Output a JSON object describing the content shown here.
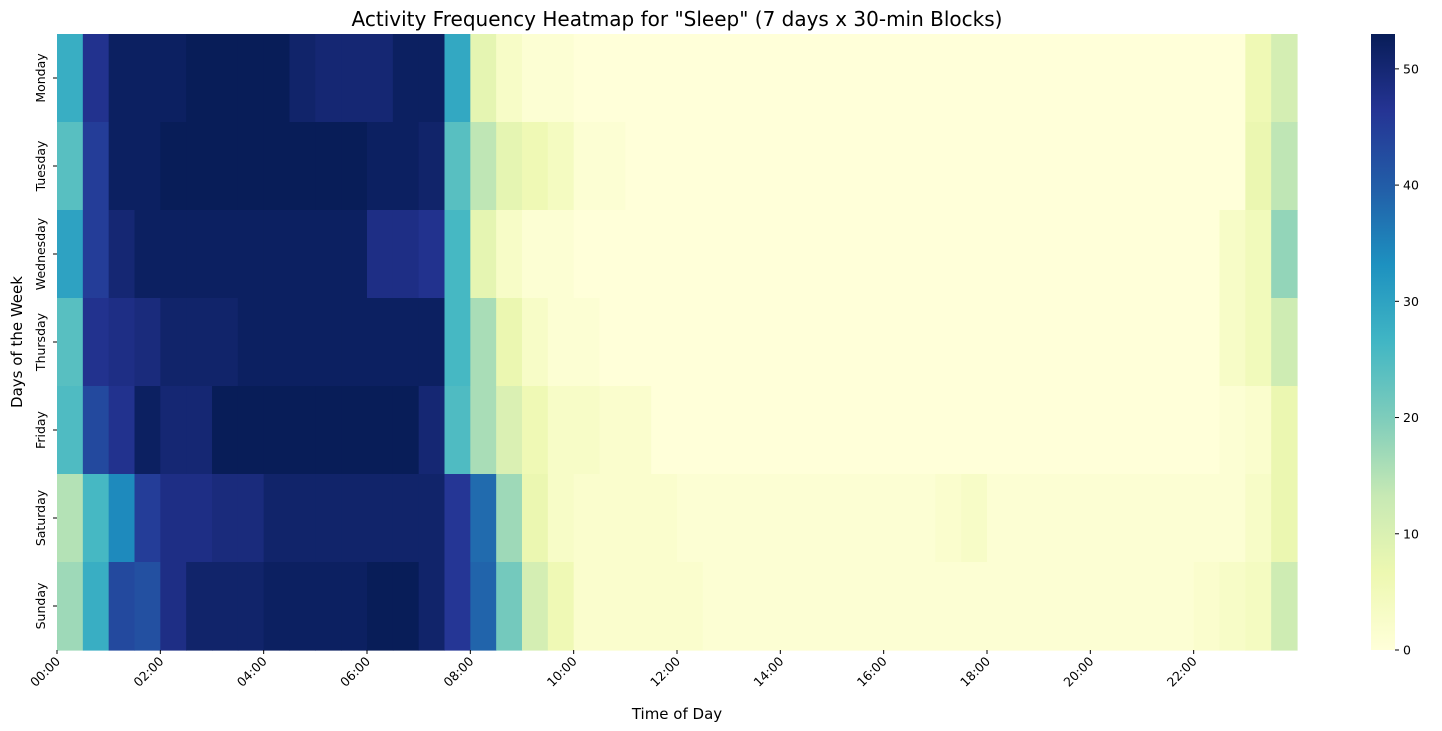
{
  "chart_data": {
    "type": "heatmap",
    "title": "Activity Frequency Heatmap for \"Sleep\" (7 days x 30-min Blocks)",
    "xlabel": "Time of Day",
    "ylabel": "Days of the Week",
    "rows": [
      "Monday",
      "Tuesday",
      "Wednesday",
      "Thursday",
      "Friday",
      "Saturday",
      "Sunday"
    ],
    "x_tick_labels": [
      "00:00",
      "02:00",
      "04:00",
      "06:00",
      "08:00",
      "10:00",
      "12:00",
      "14:00",
      "16:00",
      "18:00",
      "20:00",
      "22:00"
    ],
    "x_tick_every": 4,
    "blocks_per_row": 48,
    "colorscale": "YlGnBu",
    "colorbar_range": [
      0,
      53
    ],
    "colorbar_ticks": [
      0,
      10,
      20,
      30,
      40,
      50
    ],
    "values": [
      [
        28,
        47,
        52,
        52,
        52,
        53,
        53,
        53,
        53,
        51,
        50,
        50,
        50,
        52,
        52,
        29,
        8,
        3,
        1,
        1,
        0,
        0,
        0,
        0,
        0,
        0,
        0,
        0,
        0,
        0,
        0,
        0,
        0,
        0,
        0,
        0,
        0,
        0,
        0,
        0,
        0,
        0,
        0,
        0,
        0,
        0,
        6,
        11
      ],
      [
        24,
        45,
        52,
        52,
        53,
        53,
        53,
        53,
        53,
        53,
        53,
        53,
        52,
        52,
        51,
        24,
        14,
        8,
        6,
        4,
        1,
        1,
        0,
        0,
        0,
        0,
        0,
        0,
        0,
        0,
        0,
        0,
        0,
        0,
        0,
        0,
        0,
        0,
        0,
        0,
        0,
        0,
        0,
        0,
        0,
        0,
        7,
        14
      ],
      [
        30,
        45,
        50,
        52,
        52,
        52,
        52,
        52,
        52,
        52,
        52,
        52,
        48,
        48,
        47,
        26,
        8,
        3,
        1,
        1,
        0,
        0,
        0,
        0,
        0,
        0,
        0,
        0,
        0,
        0,
        0,
        0,
        0,
        0,
        0,
        0,
        0,
        0,
        0,
        0,
        0,
        0,
        0,
        0,
        0,
        3,
        5,
        18
      ],
      [
        24,
        47,
        48,
        49,
        51,
        51,
        51,
        52,
        52,
        52,
        52,
        52,
        52,
        52,
        52,
        26,
        16,
        7,
        3,
        1,
        1,
        0,
        0,
        0,
        0,
        0,
        0,
        0,
        0,
        0,
        0,
        0,
        0,
        0,
        0,
        0,
        0,
        0,
        0,
        0,
        0,
        0,
        0,
        0,
        0,
        3,
        5,
        12
      ],
      [
        25,
        43,
        47,
        52,
        50,
        50,
        53,
        53,
        53,
        53,
        53,
        53,
        53,
        53,
        50,
        25,
        16,
        10,
        6,
        3,
        3,
        2,
        2,
        0,
        0,
        0,
        0,
        0,
        0,
        0,
        0,
        0,
        0,
        0,
        0,
        0,
        0,
        0,
        0,
        0,
        0,
        0,
        0,
        0,
        0,
        1,
        2,
        7
      ],
      [
        15,
        26,
        34,
        45,
        48,
        48,
        49,
        49,
        51,
        51,
        51,
        51,
        51,
        51,
        51,
        46,
        38,
        17,
        7,
        3,
        2,
        2,
        2,
        2,
        1,
        1,
        1,
        1,
        1,
        1,
        1,
        1,
        1,
        1,
        2,
        3,
        1,
        1,
        1,
        1,
        1,
        1,
        1,
        1,
        1,
        1,
        3,
        7
      ],
      [
        17,
        28,
        43,
        42,
        48,
        51,
        51,
        51,
        52,
        52,
        52,
        52,
        53,
        53,
        51,
        46,
        39,
        21,
        11,
        6,
        2,
        2,
        2,
        2,
        2,
        1,
        1,
        1,
        1,
        1,
        1,
        1,
        1,
        1,
        1,
        1,
        1,
        1,
        1,
        1,
        1,
        1,
        1,
        1,
        2,
        3,
        4,
        12
      ]
    ]
  }
}
